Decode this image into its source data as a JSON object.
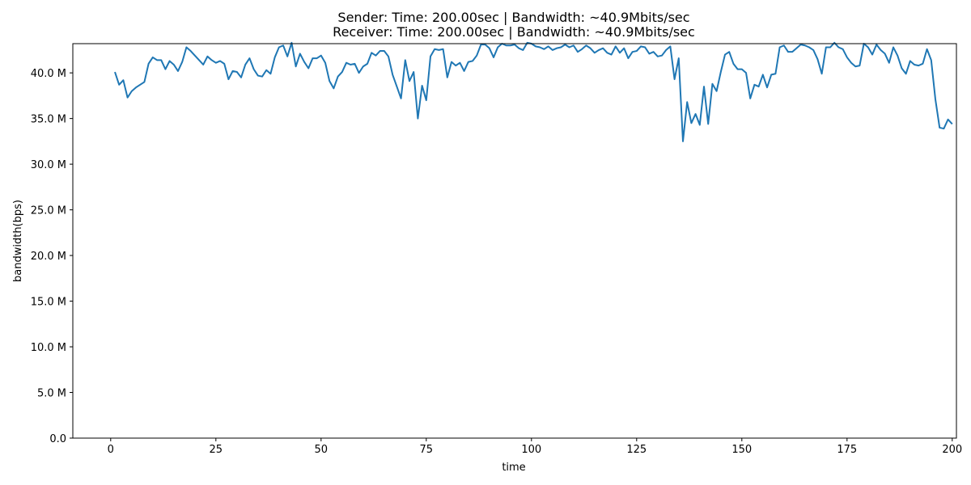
{
  "chart_data": {
    "type": "line",
    "title_line1": "Sender: Time: 200.00sec | Bandwidth: ~40.9Mbits/sec",
    "title_line2": "Receiver: Time: 200.00sec | Bandwidth: ~40.9Mbits/sec",
    "xlabel": "time",
    "ylabel": "bandwidth(bps)",
    "xlim": [
      -9,
      201
    ],
    "ylim": [
      0,
      43.2
    ],
    "x_ticks": [
      0,
      25,
      50,
      75,
      100,
      125,
      150,
      175,
      200
    ],
    "x_tick_labels": [
      "0",
      "25",
      "50",
      "75",
      "100",
      "125",
      "150",
      "175",
      "200"
    ],
    "y_ticks": [
      0,
      5,
      10,
      15,
      20,
      25,
      30,
      35,
      40
    ],
    "y_tick_labels": [
      "0.0",
      "5.0 M",
      "10.0 M",
      "15.0 M",
      "20.0 M",
      "25.0 M",
      "30.0 M",
      "35.0 M",
      "40.0 M"
    ],
    "line_color": "#1f77b4",
    "grid": false,
    "x": [
      1,
      2,
      3,
      4,
      5,
      6,
      7,
      8,
      9,
      10,
      11,
      12,
      13,
      14,
      15,
      16,
      17,
      18,
      19,
      20,
      21,
      22,
      23,
      24,
      25,
      26,
      27,
      28,
      29,
      30,
      31,
      32,
      33,
      34,
      35,
      36,
      37,
      38,
      39,
      40,
      41,
      42,
      43,
      44,
      45,
      46,
      47,
      48,
      49,
      50,
      51,
      52,
      53,
      54,
      55,
      56,
      57,
      58,
      59,
      60,
      61,
      62,
      63,
      64,
      65,
      66,
      67,
      68,
      69,
      70,
      71,
      72,
      73,
      74,
      75,
      76,
      77,
      78,
      79,
      80,
      81,
      82,
      83,
      84,
      85,
      86,
      87,
      88,
      89,
      90,
      91,
      92,
      93,
      94,
      95,
      96,
      97,
      98,
      99,
      100,
      101,
      102,
      103,
      104,
      105,
      106,
      107,
      108,
      109,
      110,
      111,
      112,
      113,
      114,
      115,
      116,
      117,
      118,
      119,
      120,
      121,
      122,
      123,
      124,
      125,
      126,
      127,
      128,
      129,
      130,
      131,
      132,
      133,
      134,
      135,
      136,
      137,
      138,
      139,
      140,
      141,
      142,
      143,
      144,
      145,
      146,
      147,
      148,
      149,
      150,
      151,
      152,
      153,
      154,
      155,
      156,
      157,
      158,
      159,
      160,
      161,
      162,
      163,
      164,
      165,
      166,
      167,
      168,
      169,
      170,
      171,
      172,
      173,
      174,
      175,
      176,
      177,
      178,
      179,
      180,
      181,
      182,
      183,
      184,
      185,
      186,
      187,
      188,
      189,
      190,
      191,
      192,
      193,
      194,
      195,
      196,
      197,
      198,
      199,
      200
    ],
    "series": [
      {
        "values": [
          40.1,
          38.7,
          39.2,
          37.3,
          38.0,
          38.4,
          38.7,
          39.0,
          41.0,
          41.7,
          41.4,
          41.4,
          40.4,
          41.3,
          40.9,
          40.2,
          41.2,
          42.8,
          42.4,
          41.9,
          41.4,
          40.9,
          41.8,
          41.4,
          41.1,
          41.3,
          41.0,
          39.3,
          40.2,
          40.1,
          39.5,
          40.9,
          41.6,
          40.4,
          39.7,
          39.6,
          40.3,
          39.9,
          41.7,
          42.8,
          43.0,
          41.8,
          43.3,
          40.7,
          42.1,
          41.2,
          40.5,
          41.6,
          41.6,
          41.9,
          41.1,
          39.1,
          38.3,
          39.6,
          40.1,
          41.1,
          40.9,
          41.0,
          40.0,
          40.7,
          41.0,
          42.2,
          41.9,
          42.4,
          42.4,
          41.8,
          39.8,
          38.5,
          37.2,
          41.4,
          39.1,
          40.1,
          35.0,
          38.6,
          37.0,
          41.8,
          42.6,
          42.5,
          42.6,
          39.5,
          41.2,
          40.8,
          41.1,
          40.2,
          41.2,
          41.3,
          41.9,
          43.1,
          43.1,
          42.7,
          41.7,
          42.8,
          43.2,
          43.0,
          43.0,
          43.1,
          42.7,
          42.5,
          43.3,
          43.2,
          42.9,
          42.8,
          42.6,
          42.9,
          42.5,
          42.7,
          42.8,
          43.1,
          42.8,
          43.0,
          42.3,
          42.6,
          43.0,
          42.7,
          42.2,
          42.5,
          42.7,
          42.2,
          42.0,
          42.9,
          42.2,
          42.7,
          41.6,
          42.3,
          42.4,
          42.9,
          42.8,
          42.1,
          42.3,
          41.8,
          41.9,
          42.5,
          42.9,
          39.3,
          41.6,
          32.5,
          36.8,
          34.5,
          35.5,
          34.3,
          38.5,
          34.4,
          38.8,
          38.0,
          40.1,
          42.0,
          42.3,
          41.0,
          40.4,
          40.4,
          40.0,
          37.2,
          38.7,
          38.5,
          39.8,
          38.4,
          39.8,
          39.9,
          42.8,
          43.0,
          42.3,
          42.3,
          42.7,
          43.1,
          43.0,
          42.8,
          42.5,
          41.5,
          39.9,
          42.8,
          42.8,
          43.3,
          42.8,
          42.6,
          41.7,
          41.1,
          40.7,
          40.8,
          43.2,
          42.8,
          42.0,
          43.1,
          42.5,
          42.1,
          41.1,
          42.8,
          41.9,
          40.5,
          39.9,
          41.3,
          40.9,
          40.8,
          41.0,
          42.6,
          41.4,
          37.1,
          34.0,
          33.9,
          34.9,
          34.4
        ]
      }
    ]
  }
}
